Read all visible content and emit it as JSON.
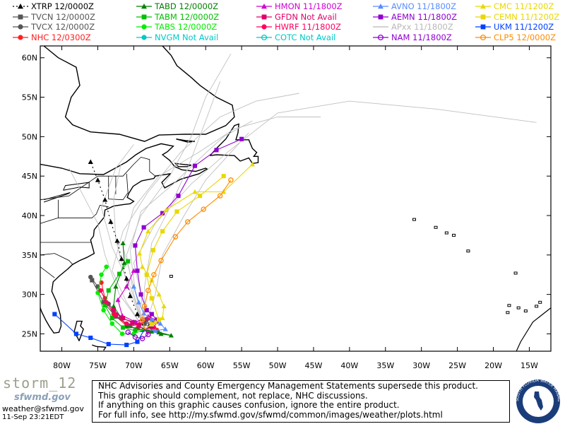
{
  "legend": [
    {
      "model": "XTRP",
      "time": "12/0000Z",
      "color": "#000000",
      "marker": "triangle",
      "dashed": true
    },
    {
      "model": "TVCN",
      "time": "12/0000Z",
      "color": "#555555",
      "marker": "square"
    },
    {
      "model": "TVCX",
      "time": "12/0000Z",
      "color": "#555555",
      "marker": "circle"
    },
    {
      "model": "NHC",
      "time": "12/0300Z",
      "color": "#ff2020",
      "marker": "circle"
    },
    {
      "model": "TABD",
      "time": "12/0000Z",
      "color": "#008000",
      "marker": "triangle"
    },
    {
      "model": "TABM",
      "time": "12/0000Z",
      "color": "#00c000",
      "marker": "square"
    },
    {
      "model": "TABS",
      "time": "12/0000Z",
      "color": "#00ee00",
      "marker": "circle"
    },
    {
      "model": "NVGM",
      "time": "Not Avail",
      "color": "#00c8c8",
      "marker": "circle"
    },
    {
      "model": "HMON",
      "time": "11/1800Z",
      "color": "#d000d0",
      "marker": "triangle"
    },
    {
      "model": "GFDN",
      "time": "Not Avail",
      "color": "#e0006a",
      "marker": "square"
    },
    {
      "model": "HWRF",
      "time": "11/1800Z",
      "color": "#ff0060",
      "marker": "circle"
    },
    {
      "model": "COTC",
      "time": "Not Avail",
      "color": "#00c8c8",
      "marker": "ring"
    },
    {
      "model": "AVNO",
      "time": "11/1800Z",
      "color": "#5a8cff",
      "marker": "triangle"
    },
    {
      "model": "AEMN",
      "time": "11/1800Z",
      "color": "#9000d0",
      "marker": "square"
    },
    {
      "model": "APxx",
      "time": "11/1800Z",
      "color": "#b8b8b8",
      "marker": "none"
    },
    {
      "model": "NAM",
      "time": "11/1800Z",
      "color": "#9000d0",
      "marker": "ring"
    },
    {
      "model": "CMC",
      "time": "11/1200Z",
      "color": "#e8d800",
      "marker": "triangle"
    },
    {
      "model": "CEMN",
      "time": "11/1200Z",
      "color": "#e8d800",
      "marker": "square"
    },
    {
      "model": "UKM",
      "time": "11/1200Z",
      "color": "#0040ff",
      "marker": "square"
    },
    {
      "model": "CLP5",
      "time": "12/0000Z",
      "color": "#ff8c00",
      "marker": "ring"
    }
  ],
  "map": {
    "lat_labels": [
      "60N",
      "55N",
      "50N",
      "45N",
      "40N",
      "35N",
      "30N",
      "25N"
    ],
    "lon_labels": [
      "80W",
      "75W",
      "70W",
      "65W",
      "60W",
      "55W",
      "50W",
      "45W",
      "40W",
      "35W",
      "30W",
      "25W",
      "20W",
      "15W"
    ],
    "lon_range": [
      -83,
      -12
    ],
    "lat_range": [
      22.8,
      61.5
    ]
  },
  "tracks": [
    {
      "model": "NHC",
      "color": "#ff2020",
      "points": [
        [
          -68.5,
          25.6
        ],
        [
          -67.5,
          25.8
        ],
        [
          -66.8,
          25.5
        ],
        [
          -68.0,
          25.3
        ],
        [
          -69.5,
          25.7
        ],
        [
          -71.0,
          26.0
        ],
        [
          -72.8,
          27.5
        ],
        [
          -74.0,
          29.5
        ],
        [
          -74.5,
          31.5
        ]
      ]
    },
    {
      "model": "TVCN",
      "color": "#555555",
      "points": [
        [
          -68.5,
          25.6
        ],
        [
          -67.5,
          25.9
        ],
        [
          -67.2,
          26.5
        ],
        [
          -68.5,
          26.3
        ],
        [
          -70.5,
          26.0
        ],
        [
          -72.5,
          27.2
        ],
        [
          -74.2,
          29.0
        ],
        [
          -75.8,
          31.8
        ]
      ]
    },
    {
      "model": "TVCX",
      "color": "#555555",
      "points": [
        [
          -68.5,
          25.6
        ],
        [
          -67.8,
          26.0
        ],
        [
          -68.2,
          26.8
        ],
        [
          -70.0,
          26.5
        ],
        [
          -71.8,
          27.0
        ],
        [
          -73.5,
          28.8
        ],
        [
          -75.0,
          31.0
        ],
        [
          -76.0,
          32.2
        ]
      ]
    },
    {
      "model": "XTRP",
      "color": "#000000",
      "dashed": true,
      "points": [
        [
          -68.5,
          25.6
        ],
        [
          -69.5,
          27.5
        ],
        [
          -70.5,
          29.8
        ],
        [
          -71.0,
          32.0
        ],
        [
          -71.7,
          34.5
        ],
        [
          -72.3,
          36.8
        ],
        [
          -73.2,
          39.2
        ],
        [
          -74.0,
          42.0
        ],
        [
          -75.0,
          44.5
        ],
        [
          -76.0,
          46.8
        ]
      ]
    },
    {
      "model": "TABD",
      "color": "#008000",
      "points": [
        [
          -68.5,
          25.6
        ],
        [
          -67.5,
          25.3
        ],
        [
          -66.2,
          25.0
        ],
        [
          -64.8,
          24.8
        ],
        [
          -66.5,
          25.2
        ],
        [
          -68.8,
          25.5
        ],
        [
          -71.0,
          26.0
        ],
        [
          -72.8,
          28.5
        ],
        [
          -72.5,
          31.0
        ],
        [
          -71.3,
          34.0
        ],
        [
          -71.5,
          36.5
        ]
      ]
    },
    {
      "model": "TABM",
      "color": "#00c000",
      "points": [
        [
          -68.5,
          25.6
        ],
        [
          -69.8,
          25.4
        ],
        [
          -71.5,
          25.8
        ],
        [
          -73.0,
          27.0
        ],
        [
          -74.0,
          28.6
        ],
        [
          -73.5,
          30.5
        ],
        [
          -72.0,
          32.6
        ],
        [
          -70.8,
          34.2
        ]
      ]
    },
    {
      "model": "TABS",
      "color": "#00ee00",
      "points": [
        [
          -68.5,
          25.6
        ],
        [
          -70.0,
          25.0
        ],
        [
          -71.6,
          25.0
        ],
        [
          -73.0,
          26.3
        ],
        [
          -74.2,
          28.0
        ],
        [
          -75.0,
          30.2
        ],
        [
          -74.5,
          32.5
        ],
        [
          -73.8,
          33.5
        ]
      ]
    },
    {
      "model": "HMON",
      "color": "#d000d0",
      "points": [
        [
          -68.5,
          25.6
        ],
        [
          -67.5,
          26.0
        ],
        [
          -67.0,
          26.8
        ],
        [
          -68.0,
          27.2
        ],
        [
          -69.7,
          26.5
        ],
        [
          -71.6,
          27.3
        ],
        [
          -72.2,
          29.3
        ],
        [
          -71.0,
          31.0
        ],
        [
          -70.0,
          33.0
        ]
      ]
    },
    {
      "model": "HWRF",
      "color": "#ff0060",
      "points": [
        [
          -68.5,
          25.6
        ],
        [
          -67.2,
          25.8
        ],
        [
          -66.8,
          26.5
        ],
        [
          -67.8,
          27.0
        ],
        [
          -69.2,
          26.2
        ],
        [
          -71.0,
          26.3
        ],
        [
          -72.6,
          27.4
        ],
        [
          -73.8,
          29.0
        ],
        [
          -74.6,
          30.5
        ]
      ]
    },
    {
      "model": "GFDN",
      "color": "#e0006a",
      "points": [
        [
          -68.5,
          25.6
        ],
        [
          -69.3,
          26.0
        ],
        [
          -70.2,
          26.4
        ],
        [
          -71.5,
          27.0
        ],
        [
          -72.8,
          28.0
        ]
      ]
    },
    {
      "model": "AVNO",
      "color": "#5a8cff",
      "points": [
        [
          -68.5,
          25.6
        ],
        [
          -67.0,
          25.4
        ],
        [
          -65.6,
          25.6
        ],
        [
          -66.3,
          26.3
        ],
        [
          -67.5,
          26.8
        ],
        [
          -68.6,
          27.6
        ],
        [
          -69.3,
          29.0
        ],
        [
          -70.0,
          31.0
        ]
      ]
    },
    {
      "model": "AEMN",
      "color": "#9000d0",
      "points": [
        [
          -68.5,
          25.6
        ],
        [
          -67.5,
          26.0
        ],
        [
          -66.8,
          26.8
        ],
        [
          -67.5,
          27.5
        ],
        [
          -68.2,
          28.0
        ],
        [
          -69.0,
          30.0
        ],
        [
          -69.5,
          33.0
        ],
        [
          -69.8,
          36.2
        ],
        [
          -68.6,
          38.5
        ],
        [
          -66.0,
          40.3
        ],
        [
          -63.8,
          42.5
        ],
        [
          -61.5,
          46.3
        ],
        [
          -58.5,
          48.3
        ],
        [
          -55.0,
          49.7
        ]
      ]
    },
    {
      "model": "NAM",
      "color": "#9000d0",
      "points": [
        [
          -68.5,
          25.6
        ],
        [
          -68.0,
          24.9
        ],
        [
          -68.8,
          24.4
        ],
        [
          -69.8,
          24.6
        ],
        [
          -70.8,
          25.2
        ]
      ]
    },
    {
      "model": "CMC",
      "color": "#e8d800",
      "points": [
        [
          -68.5,
          25.6
        ],
        [
          -67.0,
          26.5
        ],
        [
          -66.0,
          27.0
        ],
        [
          -65.8,
          28.5
        ],
        [
          -66.5,
          30.0
        ],
        [
          -67.5,
          31.8
        ],
        [
          -68.8,
          33.5
        ],
        [
          -69.2,
          35.2
        ],
        [
          -68.0,
          38.0
        ],
        [
          -65.5,
          40.7
        ],
        [
          -61.5,
          43.0
        ],
        [
          -57.5,
          43.0
        ],
        [
          -53.5,
          46.5
        ]
      ]
    },
    {
      "model": "CEMN",
      "color": "#e8d800",
      "points": [
        [
          -68.5,
          25.6
        ],
        [
          -67.5,
          26.2
        ],
        [
          -66.5,
          26.8
        ],
        [
          -67.5,
          29.5
        ],
        [
          -68.2,
          32.5
        ],
        [
          -67.3,
          35.6
        ],
        [
          -66.0,
          38.0
        ],
        [
          -64.0,
          40.5
        ],
        [
          -60.8,
          42.5
        ],
        [
          -57.5,
          45.0
        ]
      ]
    },
    {
      "model": "UKM",
      "color": "#0040ff",
      "points": [
        [
          -68.5,
          25.6
        ],
        [
          -69.5,
          24.0
        ],
        [
          -71.0,
          23.6
        ],
        [
          -73.5,
          23.7
        ],
        [
          -76.0,
          24.5
        ],
        [
          -78.0,
          25.0
        ],
        [
          -81.0,
          27.5
        ]
      ]
    },
    {
      "model": "CLP5",
      "color": "#ff8c00",
      "points": [
        [
          -68.5,
          25.6
        ],
        [
          -68.8,
          26.8
        ],
        [
          -68.5,
          28.5
        ],
        [
          -68.0,
          30.5
        ],
        [
          -67.2,
          32.5
        ],
        [
          -66.2,
          34.3
        ],
        [
          -64.2,
          37.3
        ],
        [
          -62.5,
          39.2
        ],
        [
          -60.3,
          40.8
        ],
        [
          -58.0,
          42.5
        ],
        [
          -56.5,
          44.5
        ]
      ]
    },
    {
      "model": "APxx",
      "color": "#c0c0c0",
      "points": [
        [
          -68.5,
          25.6
        ],
        [
          -70.0,
          30.0
        ],
        [
          -71.0,
          35.0
        ],
        [
          -69.0,
          40.0
        ],
        [
          -65.0,
          45.0
        ],
        [
          -62.0,
          50.0
        ],
        [
          -60.0,
          55.0
        ],
        [
          -56.5,
          60.5
        ]
      ]
    },
    {
      "model": "APxx",
      "color": "#c0c0c0",
      "points": [
        [
          -68.5,
          25.6
        ],
        [
          -69.0,
          30.0
        ],
        [
          -70.0,
          34.0
        ],
        [
          -67.0,
          39.0
        ],
        [
          -62.0,
          44.0
        ],
        [
          -57.0,
          48.0
        ],
        [
          -50.0,
          53.0
        ],
        [
          -40.0,
          54.5
        ],
        [
          -28.0,
          53.5
        ],
        [
          -14.0,
          51.8
        ]
      ]
    },
    {
      "model": "APxx",
      "color": "#c0c0c0",
      "points": [
        [
          -68.5,
          25.6
        ],
        [
          -71.0,
          29.0
        ],
        [
          -73.0,
          33.0
        ],
        [
          -71.5,
          38.0
        ],
        [
          -68.0,
          43.0
        ],
        [
          -63.5,
          48.0
        ],
        [
          -58.0,
          52.5
        ],
        [
          -53.0,
          54.5
        ],
        [
          -47.0,
          55.5
        ]
      ]
    },
    {
      "model": "APxx",
      "color": "#c0c0c0",
      "points": [
        [
          -68.5,
          25.6
        ],
        [
          -70.5,
          31.0
        ],
        [
          -73.0,
          36.0
        ],
        [
          -74.5,
          41.0
        ],
        [
          -72.5,
          46.0
        ],
        [
          -70.0,
          49.0
        ]
      ]
    },
    {
      "model": "APxx",
      "color": "#c0c0c0",
      "points": [
        [
          -68.5,
          25.6
        ],
        [
          -67.0,
          30.0
        ],
        [
          -66.0,
          35.0
        ],
        [
          -63.0,
          40.0
        ],
        [
          -60.0,
          44.5
        ],
        [
          -56.5,
          48.0
        ],
        [
          -54.0,
          50.5
        ]
      ]
    },
    {
      "model": "APxx",
      "color": "#c0c0c0",
      "points": [
        [
          -68.5,
          25.6
        ],
        [
          -70.0,
          31.0
        ],
        [
          -71.5,
          36.0
        ],
        [
          -70.0,
          41.0
        ],
        [
          -66.5,
          45.0
        ],
        [
          -61.0,
          48.0
        ],
        [
          -56.0,
          51.0
        ],
        [
          -50.0,
          52.5
        ],
        [
          -44.0,
          52.5
        ]
      ]
    },
    {
      "model": "APxx",
      "color": "#c0c0c0",
      "points": [
        [
          -68.5,
          25.6
        ],
        [
          -72.0,
          30.0
        ],
        [
          -74.0,
          35.0
        ],
        [
          -75.0,
          39.0
        ],
        [
          -77.0,
          42.5
        ],
        [
          -79.0,
          46.0
        ]
      ]
    },
    {
      "model": "APxx",
      "color": "#c0c0c0",
      "points": [
        [
          -68.5,
          25.6
        ],
        [
          -68.5,
          31.0
        ],
        [
          -67.5,
          36.5
        ],
        [
          -65.0,
          41.0
        ],
        [
          -62.5,
          46.0
        ],
        [
          -60.0,
          52.0
        ],
        [
          -58.0,
          57.0
        ]
      ]
    },
    {
      "model": "APxx",
      "color": "#c0c0c0",
      "points": [
        [
          -68.5,
          25.6
        ],
        [
          -69.8,
          30.5
        ],
        [
          -70.5,
          35.5
        ],
        [
          -69.0,
          40.5
        ],
        [
          -64.5,
          44.0
        ],
        [
          -60.5,
          47.5
        ],
        [
          -57.5,
          50.0
        ],
        [
          -53.5,
          52.0
        ]
      ]
    },
    {
      "model": "APxx",
      "color": "#c0c0c0",
      "points": [
        [
          -68.5,
          25.6
        ],
        [
          -71.0,
          31.5
        ],
        [
          -72.5,
          37.0
        ],
        [
          -72.8,
          42.0
        ],
        [
          -71.8,
          46.5
        ]
      ]
    }
  ],
  "footer": {
    "logo_text": "storm_12",
    "logo_subtext": "sfwmd.gov",
    "email": "weather@sfwmd.gov",
    "timestamp": "11-Sep 23:21EDT",
    "disclaimer": [
      "NHC Advisories and County Emergency Management Statements supersede this product.",
      "This graphic should complement, not replace, NHC discussions.",
      "If anything on this graphic causes confusion, ignore the entire product.",
      "For full info, see  http://my.sfwmd.gov/sfwmd/common/images/weather/plots.html"
    ],
    "seal_text": "SOUTH FLORIDA WATER MANAGEMENT DISTRICT"
  }
}
